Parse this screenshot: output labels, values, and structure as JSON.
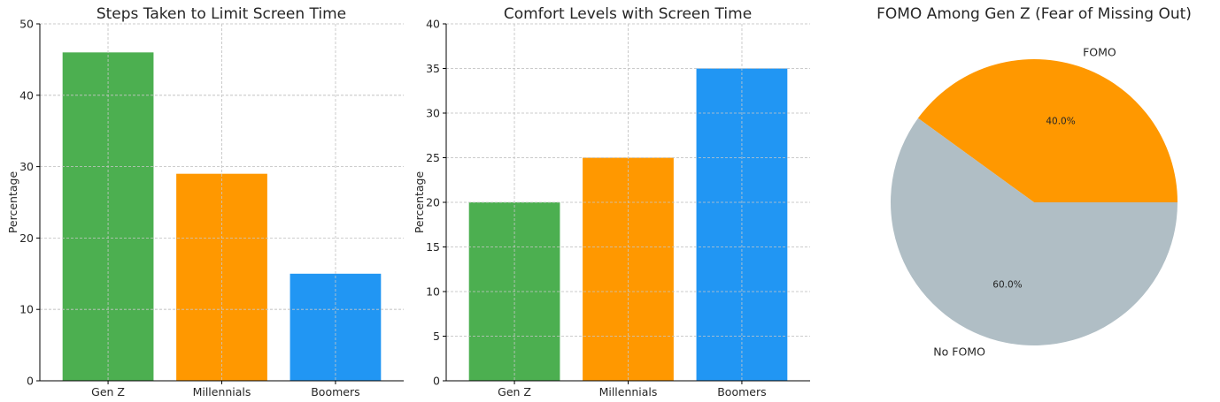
{
  "chart_data": [
    {
      "type": "bar",
      "title": "Steps Taken to Limit Screen Time",
      "ylabel": "Percentage",
      "xlabel": "",
      "categories": [
        "Gen Z",
        "Millennials",
        "Boomers"
      ],
      "values": [
        46,
        29,
        15
      ],
      "colors": [
        "#4caf50",
        "#ff9800",
        "#2196f3"
      ],
      "ylim": [
        0,
        50
      ],
      "yticks": [
        0,
        10,
        20,
        30,
        40,
        50
      ],
      "grid": true
    },
    {
      "type": "bar",
      "title": "Comfort Levels with Screen Time",
      "ylabel": "Percentage",
      "xlabel": "",
      "categories": [
        "Gen Z",
        "Millennials",
        "Boomers"
      ],
      "values": [
        20,
        25,
        35
      ],
      "colors": [
        "#4caf50",
        "#ff9800",
        "#2196f3"
      ],
      "ylim": [
        0,
        40
      ],
      "yticks": [
        0,
        5,
        10,
        15,
        20,
        25,
        30,
        35,
        40
      ],
      "grid": true
    },
    {
      "type": "pie",
      "title": "FOMO Among Gen Z (Fear of Missing Out)",
      "labels": [
        "FOMO",
        "No FOMO"
      ],
      "values": [
        40,
        60
      ],
      "pct_labels": [
        "40.0%",
        "60.0%"
      ],
      "colors": [
        "#ff9800",
        "#b0bec5"
      ]
    }
  ]
}
